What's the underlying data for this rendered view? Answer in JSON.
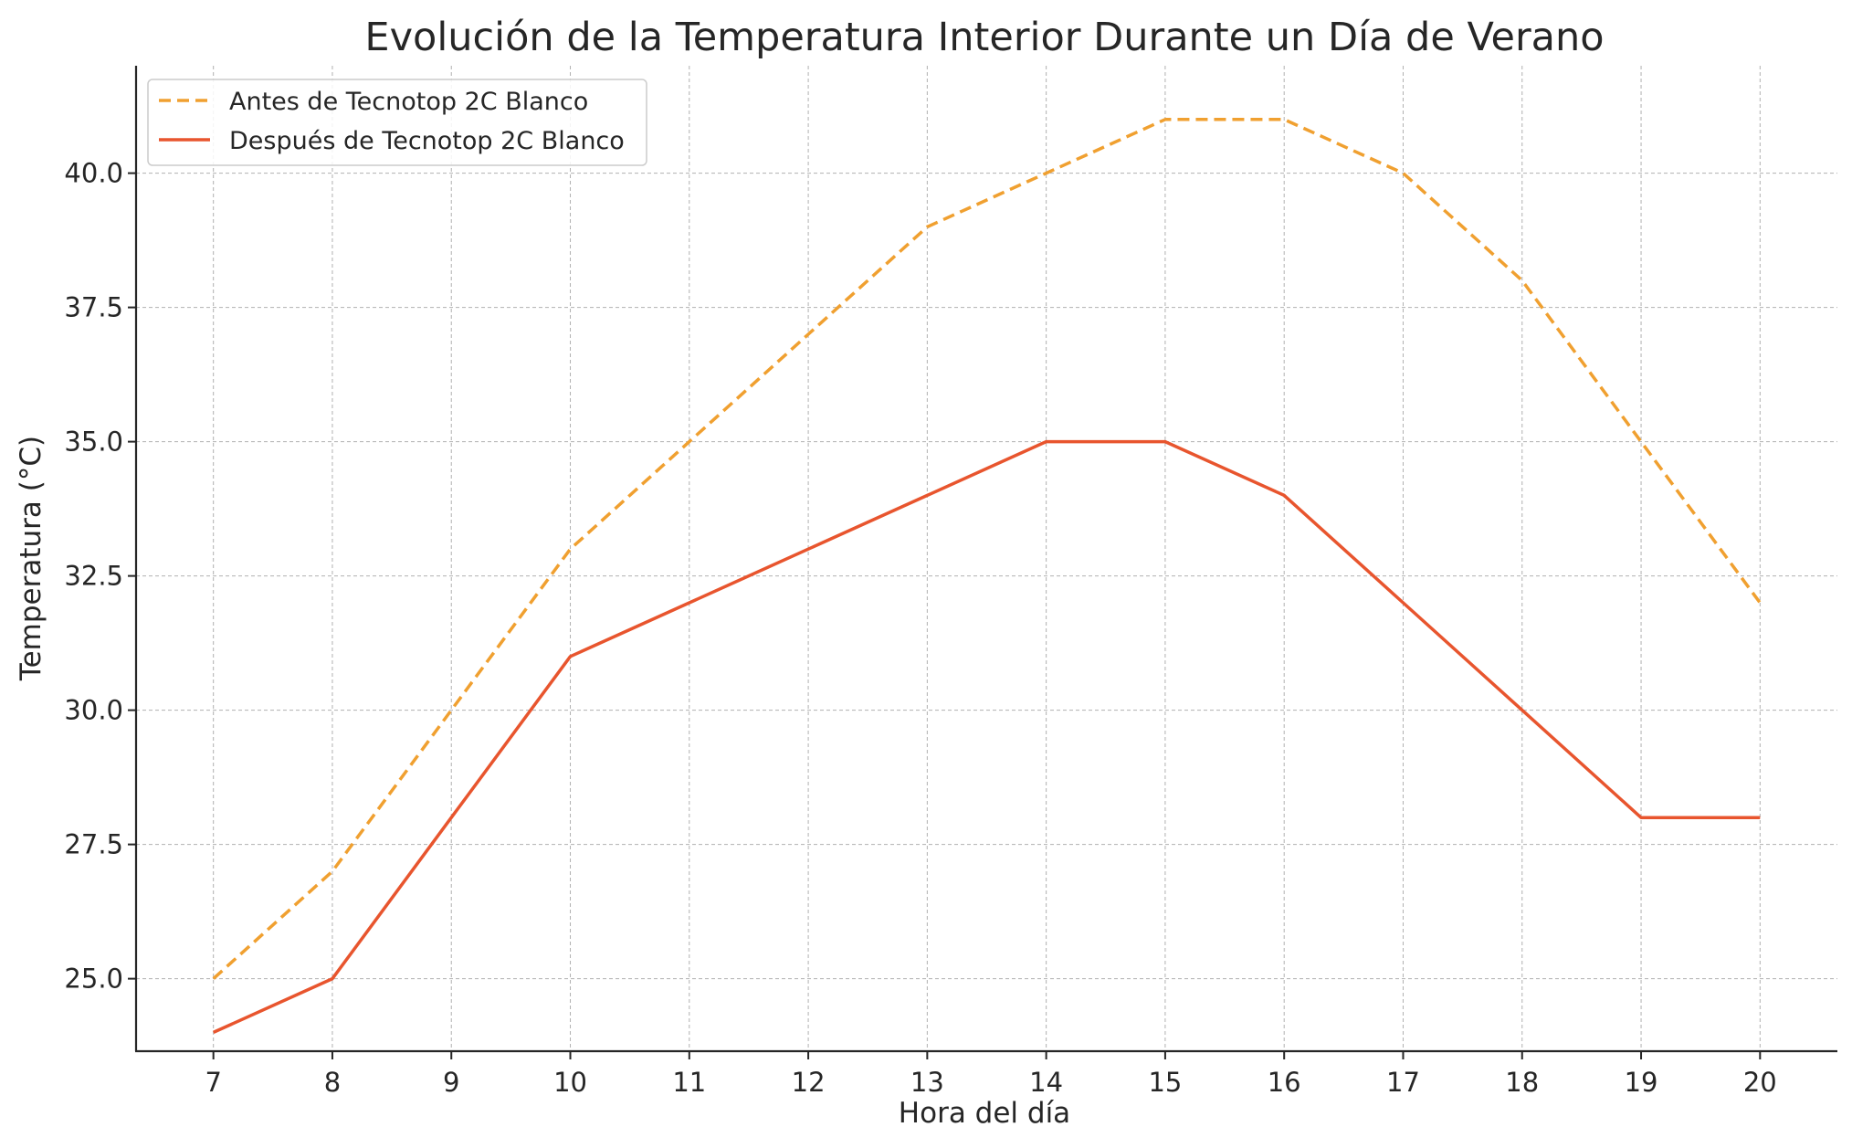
{
  "chart_data": {
    "type": "line",
    "title": "Evolución de la Temperatura Interior Durante un Día de Verano",
    "xlabel": "Hora del día",
    "ylabel": "Temperatura (°C)",
    "x": [
      7,
      8,
      9,
      10,
      11,
      12,
      13,
      14,
      15,
      16,
      17,
      18,
      19,
      20
    ],
    "xlim": [
      6.35,
      20.65
    ],
    "ylim": [
      23.65,
      42.0
    ],
    "yticks": [
      25.0,
      27.5,
      30.0,
      32.5,
      35.0,
      37.5,
      40.0
    ],
    "ytick_labels": [
      "25.0",
      "27.5",
      "30.0",
      "32.5",
      "35.0",
      "37.5",
      "40.0"
    ],
    "xtick_labels": [
      "7",
      "8",
      "9",
      "10",
      "11",
      "12",
      "13",
      "14",
      "15",
      "16",
      "17",
      "18",
      "19",
      "20"
    ],
    "grid": true,
    "legend_position": "top-left",
    "series": [
      {
        "name": "Antes de Tecnotop 2C Blanco",
        "values": [
          25,
          27,
          30,
          33,
          35,
          37,
          39,
          40,
          41,
          41,
          40,
          38,
          35,
          32
        ],
        "color": "#f0a030",
        "style": "dashed"
      },
      {
        "name": "Después de Tecnotop 2C Blanco",
        "values": [
          24,
          25,
          28,
          31,
          32,
          33,
          34,
          35,
          35,
          34,
          32,
          30,
          28,
          28
        ],
        "color": "#e8552e",
        "style": "solid"
      }
    ]
  }
}
